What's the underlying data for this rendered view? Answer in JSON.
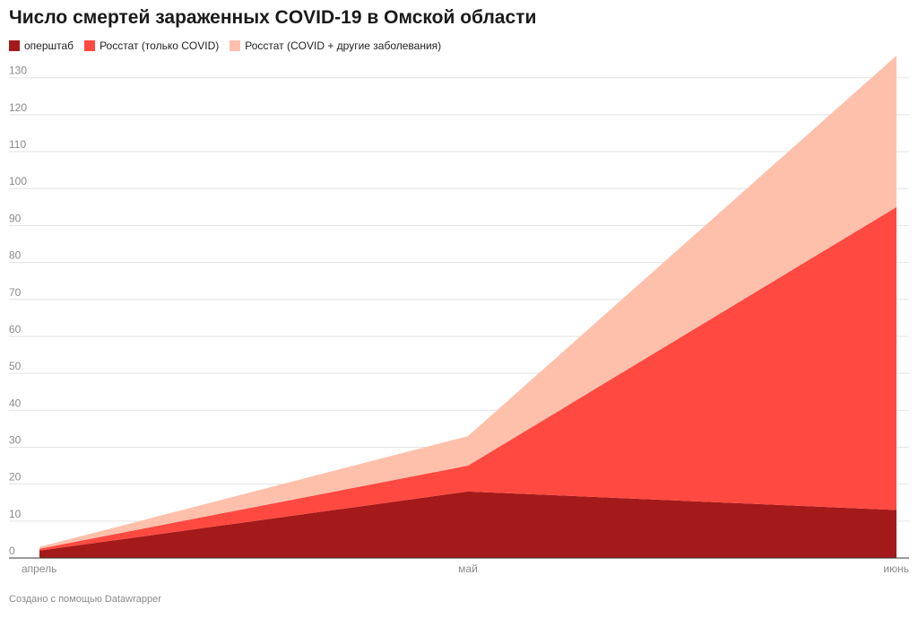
{
  "chart_data": {
    "type": "area",
    "stacked": true,
    "title": "Число смертей зараженных COVID-19 в Омской области",
    "categories": [
      "апрель",
      "май",
      "июнь"
    ],
    "series": [
      {
        "name": "оперштаб",
        "color": "#a41a1a",
        "values": [
          2,
          18,
          13
        ]
      },
      {
        "name": "Росстат (только COVID)",
        "color": "#ff4941",
        "values": [
          0.5,
          7,
          82
        ]
      },
      {
        "name": "Росстат (COVID + другие заболевания)",
        "color": "#ffc0ab",
        "values": [
          0.5,
          8,
          41
        ]
      }
    ],
    "ylim": [
      0,
      136
    ],
    "yticks": [
      0,
      10,
      20,
      30,
      40,
      50,
      60,
      70,
      80,
      90,
      100,
      110,
      120,
      130
    ],
    "grid": true,
    "legend_position": "top-left",
    "footer": "Создано с помощью Datawrapper"
  }
}
